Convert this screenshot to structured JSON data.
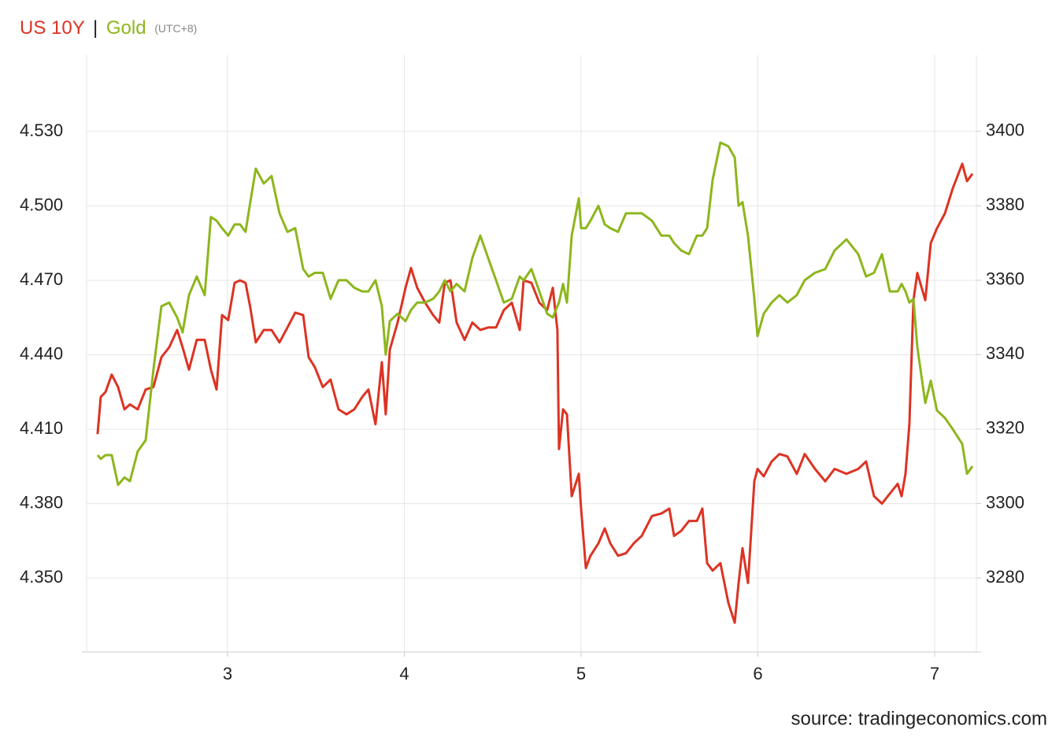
{
  "chart_data": {
    "type": "line",
    "title_separator": "|",
    "title_note": "(UTC+8)",
    "source": "source: tradingeconomics.com",
    "x": [
      2.265,
      2.283,
      2.31,
      2.345,
      2.381,
      2.417,
      2.448,
      2.492,
      2.537,
      2.581,
      2.626,
      2.67,
      2.715,
      2.746,
      2.782,
      2.826,
      2.871,
      2.906,
      2.938,
      2.969,
      3.004,
      3.04,
      3.071,
      3.102,
      3.129,
      3.16,
      3.205,
      3.249,
      3.294,
      3.339,
      3.383,
      3.428,
      3.459,
      3.494,
      3.539,
      3.583,
      3.628,
      3.673,
      3.717,
      3.762,
      3.797,
      3.837,
      3.873,
      3.895,
      3.918,
      3.962,
      4.007,
      4.038,
      4.073,
      4.118,
      4.163,
      4.198,
      4.229,
      4.261,
      4.296,
      4.341,
      4.385,
      4.43,
      4.474,
      4.519,
      4.563,
      4.608,
      4.653,
      4.675,
      4.719,
      4.764,
      4.808,
      4.84,
      4.866,
      4.875,
      4.898,
      4.92,
      4.947,
      4.987,
      5.0,
      5.027,
      5.053,
      5.098,
      5.134,
      5.165,
      5.209,
      5.254,
      5.298,
      5.343,
      5.401,
      5.454,
      5.499,
      5.526,
      5.566,
      5.61,
      5.655,
      5.686,
      5.713,
      5.744,
      5.788,
      5.833,
      5.869,
      5.891,
      5.913,
      5.944,
      5.98,
      5.998,
      6.033,
      6.078,
      6.122,
      6.167,
      6.22,
      6.265,
      6.323,
      6.381,
      6.434,
      6.501,
      6.568,
      6.612,
      6.657,
      6.702,
      6.746,
      6.791,
      6.813,
      6.835,
      6.857,
      6.88,
      6.902,
      6.947,
      6.978,
      7.013,
      7.058,
      7.102,
      7.156,
      7.183,
      7.214
    ],
    "series": [
      {
        "name": "US 10Y",
        "color": "#dc3323",
        "values": [
          4.408,
          4.423,
          4.425,
          4.432,
          4.427,
          4.418,
          4.42,
          4.418,
          4.426,
          4.427,
          4.439,
          4.443,
          4.45,
          4.443,
          4.434,
          4.446,
          4.446,
          4.434,
          4.426,
          4.456,
          4.454,
          4.469,
          4.47,
          4.469,
          4.459,
          4.445,
          4.45,
          4.45,
          4.445,
          4.451,
          4.457,
          4.456,
          4.439,
          4.435,
          4.427,
          4.43,
          4.418,
          4.416,
          4.418,
          4.423,
          4.426,
          4.412,
          4.437,
          4.416,
          4.442,
          4.453,
          4.467,
          4.475,
          4.467,
          4.461,
          4.456,
          4.453,
          4.469,
          4.47,
          4.453,
          4.446,
          4.453,
          4.45,
          4.451,
          4.451,
          4.458,
          4.461,
          4.45,
          4.47,
          4.469,
          4.461,
          4.458,
          4.467,
          4.45,
          4.402,
          4.418,
          4.416,
          4.383,
          4.392,
          4.378,
          4.354,
          4.359,
          4.364,
          4.37,
          4.364,
          4.359,
          4.36,
          4.364,
          4.367,
          4.375,
          4.376,
          4.378,
          4.367,
          4.369,
          4.373,
          4.373,
          4.378,
          4.356,
          4.353,
          4.356,
          4.34,
          4.332,
          4.348,
          4.362,
          4.348,
          4.389,
          4.394,
          4.391,
          4.397,
          4.4,
          4.399,
          4.392,
          4.4,
          4.394,
          4.389,
          4.394,
          4.392,
          4.394,
          4.397,
          4.383,
          4.38,
          4.384,
          4.388,
          4.383,
          4.392,
          4.412,
          4.462,
          4.473,
          4.462,
          4.485,
          4.491,
          4.497,
          4.507,
          4.517,
          4.51,
          4.513
        ]
      },
      {
        "name": "Gold",
        "color": "#8db61d",
        "axis": "y2",
        "values": [
          3313,
          3312,
          3313,
          3313,
          3305,
          3307,
          3306,
          3314,
          3317,
          3336,
          3353,
          3354,
          3350,
          3346,
          3356,
          3361,
          3356,
          3377,
          3376,
          3374,
          3372,
          3375,
          3375,
          3373,
          3381,
          3390,
          3386,
          3388,
          3378,
          3373,
          3374,
          3363,
          3361,
          3362,
          3362,
          3355,
          3360,
          3360,
          3358,
          3357,
          3357,
          3360,
          3353,
          3340,
          3349,
          3351,
          3349,
          3352,
          3354,
          3354,
          3355,
          3357,
          3360,
          3357,
          3359,
          3357,
          3366,
          3372,
          3366,
          3360,
          3354,
          3355,
          3361,
          3360,
          3363,
          3357,
          3351,
          3350,
          3353,
          3354,
          3359,
          3354,
          3372,
          3382,
          3374,
          3374,
          3376,
          3380,
          3375,
          3374,
          3373,
          3378,
          3378,
          3378,
          3376,
          3372,
          3372,
          3370,
          3368,
          3367,
          3372,
          3372,
          3374,
          3387,
          3397,
          3396,
          3393,
          3380,
          3381,
          3372,
          3355,
          3345,
          3351,
          3354,
          3356,
          3354,
          3356,
          3360,
          3362,
          3363,
          3368,
          3371,
          3367,
          3361,
          3362,
          3367,
          3357,
          3357,
          3359,
          3357,
          3354,
          3355,
          3342,
          3327,
          3333,
          3325,
          3323,
          3320,
          3316,
          3308,
          3310
        ]
      }
    ],
    "xlim": [
      2.203,
      7.236
    ],
    "xticks": [
      3,
      4,
      5,
      6,
      7
    ],
    "ylim": [
      4.3202,
      4.5608
    ],
    "yticks": [
      {
        "value": 4.35,
        "label": "4.350"
      },
      {
        "value": 4.38,
        "label": "4.380"
      },
      {
        "value": 4.41,
        "label": "4.410"
      },
      {
        "value": 4.44,
        "label": "4.440"
      },
      {
        "value": 4.47,
        "label": "4.470"
      },
      {
        "value": 4.5,
        "label": "4.500"
      },
      {
        "value": 4.53,
        "label": "4.530"
      }
    ],
    "y2lim": [
      3260.1,
      3420.5
    ],
    "y2ticks": [
      3280,
      3300,
      3320,
      3340,
      3360,
      3380,
      3400
    ],
    "grid": true
  }
}
